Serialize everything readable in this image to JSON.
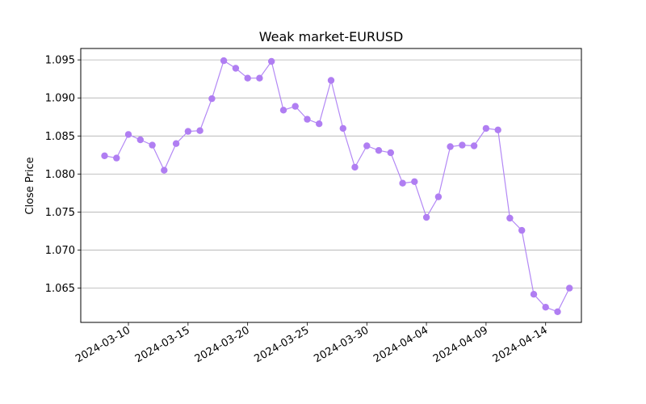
{
  "chart_data": {
    "type": "line",
    "title": "Weak market-EURUSD",
    "xlabel": "",
    "ylabel": "Close Price",
    "x": [
      "2024-03-08",
      "2024-03-09",
      "2024-03-10",
      "2024-03-11",
      "2024-03-12",
      "2024-03-13",
      "2024-03-14",
      "2024-03-15",
      "2024-03-16",
      "2024-03-17",
      "2024-03-18",
      "2024-03-19",
      "2024-03-20",
      "2024-03-21",
      "2024-03-22",
      "2024-03-23",
      "2024-03-24",
      "2024-03-25",
      "2024-03-26",
      "2024-03-27",
      "2024-03-28",
      "2024-03-29",
      "2024-03-30",
      "2024-03-31",
      "2024-04-01",
      "2024-04-02",
      "2024-04-03",
      "2024-04-04",
      "2024-04-05",
      "2024-04-06",
      "2024-04-07",
      "2024-04-08",
      "2024-04-09",
      "2024-04-10",
      "2024-04-11",
      "2024-04-12",
      "2024-04-13",
      "2024-04-14",
      "2024-04-15",
      "2024-04-16"
    ],
    "series": [
      {
        "values": [
          1.0824,
          1.0821,
          1.0852,
          1.0845,
          1.0838,
          1.0805,
          1.084,
          1.0856,
          1.0857,
          1.0899,
          1.0949,
          1.0939,
          1.0926,
          1.0926,
          1.0948,
          1.0884,
          1.0889,
          1.0872,
          1.0866,
          1.0923,
          1.086,
          1.0809,
          1.0837,
          1.0831,
          1.0828,
          1.0788,
          1.079,
          1.0743,
          1.077,
          1.0836,
          1.0838,
          1.0837,
          1.086,
          1.0858,
          1.0742,
          1.0726,
          1.0642,
          1.0625,
          1.0619,
          1.065
        ]
      }
    ],
    "xticks": [
      "2024-03-10",
      "2024-03-15",
      "2024-03-20",
      "2024-03-25",
      "2024-03-30",
      "2024-04-04",
      "2024-04-09",
      "2024-04-14"
    ],
    "yticks": [
      "1.065",
      "1.070",
      "1.075",
      "1.080",
      "1.085",
      "1.090",
      "1.095"
    ],
    "ylim": [
      1.0605,
      1.0965
    ],
    "xlim": [
      "2024-03-06.8",
      "2024-04-17.2"
    ],
    "grid": "horizontal",
    "line_color": "#b388f5",
    "marker_color": "#b07ef2"
  }
}
